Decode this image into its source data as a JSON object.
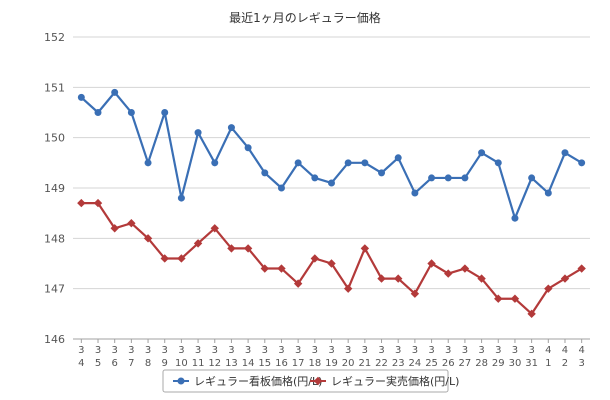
{
  "chart_data": {
    "type": "line",
    "title": "最近1ヶ月のレギュラー価格",
    "xlabel": "",
    "ylabel": "",
    "ylim": [
      146,
      152
    ],
    "yticks": [
      146,
      147,
      148,
      149,
      150,
      151,
      152
    ],
    "grid": true,
    "legend_position": "bottom",
    "categories": [
      [
        "3",
        "4"
      ],
      [
        "3",
        "5"
      ],
      [
        "3",
        "6"
      ],
      [
        "3",
        "7"
      ],
      [
        "3",
        "8"
      ],
      [
        "3",
        "9"
      ],
      [
        "3",
        "10"
      ],
      [
        "3",
        "11"
      ],
      [
        "3",
        "12"
      ],
      [
        "3",
        "13"
      ],
      [
        "3",
        "14"
      ],
      [
        "3",
        "15"
      ],
      [
        "3",
        "16"
      ],
      [
        "3",
        "17"
      ],
      [
        "3",
        "18"
      ],
      [
        "3",
        "19"
      ],
      [
        "3",
        "20"
      ],
      [
        "3",
        "21"
      ],
      [
        "3",
        "22"
      ],
      [
        "3",
        "23"
      ],
      [
        "3",
        "24"
      ],
      [
        "3",
        "25"
      ],
      [
        "3",
        "26"
      ],
      [
        "3",
        "27"
      ],
      [
        "3",
        "28"
      ],
      [
        "3",
        "29"
      ],
      [
        "3",
        "30"
      ],
      [
        "3",
        "31"
      ],
      [
        "4",
        "1"
      ],
      [
        "4",
        "2"
      ],
      [
        "4",
        "3"
      ]
    ],
    "series": [
      {
        "name": "レギュラー看板価格(円/L)",
        "color": "#3a6fb5",
        "marker": "circle",
        "values": [
          150.8,
          150.5,
          150.9,
          150.5,
          149.5,
          150.5,
          148.8,
          150.1,
          149.5,
          150.2,
          149.8,
          149.3,
          149.0,
          149.5,
          149.2,
          149.1,
          149.5,
          149.5,
          149.3,
          149.6,
          148.9,
          149.2,
          149.2,
          149.2,
          149.7,
          149.5,
          148.4,
          149.2,
          148.9,
          149.7,
          149.5
        ]
      },
      {
        "name": "レギュラー実売価格(円/L)",
        "color": "#b33a3a",
        "marker": "diamond",
        "values": [
          148.7,
          148.7,
          148.2,
          148.3,
          148.0,
          147.6,
          147.6,
          147.9,
          148.2,
          147.8,
          147.8,
          147.4,
          147.4,
          147.1,
          147.6,
          147.5,
          147.0,
          147.8,
          147.2,
          147.2,
          146.9,
          147.5,
          147.3,
          147.4,
          147.2,
          146.8,
          146.8,
          146.5,
          147.0,
          147.2,
          147.4
        ]
      }
    ]
  }
}
